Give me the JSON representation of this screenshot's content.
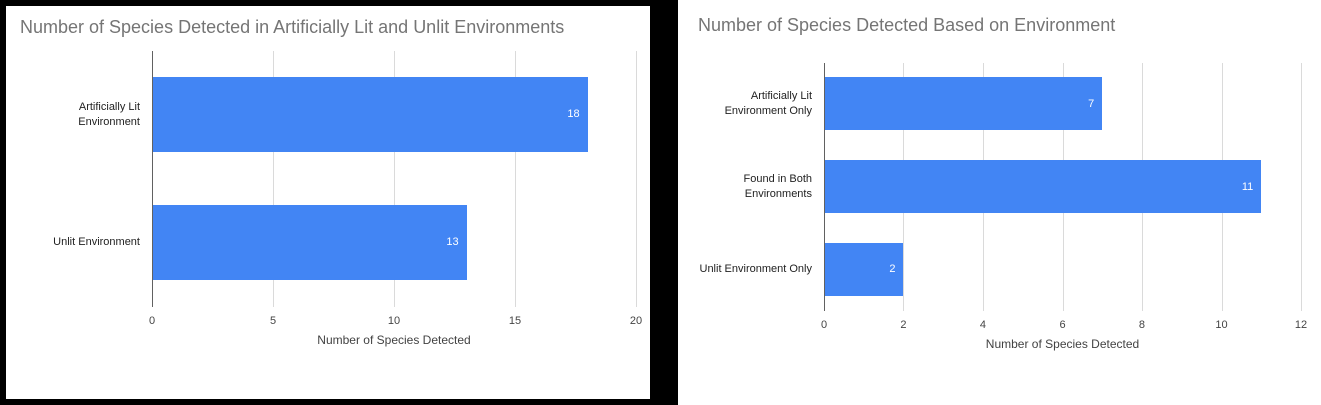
{
  "page": {
    "background": "#ffffff",
    "left_frame_color": "#000000"
  },
  "chart_data": [
    {
      "type": "bar",
      "orientation": "horizontal",
      "title": "Number of Species Detected in Artificially Lit and Unlit Environments",
      "categories": [
        "Artificially Lit Environment",
        "Unlit Environment"
      ],
      "values": [
        18,
        13
      ],
      "xlabel": "Number of Species Detected",
      "xlim": [
        0,
        20
      ],
      "xticks": [
        0,
        5,
        10,
        15,
        20
      ],
      "bar_color": "#4285f4",
      "data_label_color": "#ffffff",
      "grid": true,
      "legend": "none"
    },
    {
      "type": "bar",
      "orientation": "horizontal",
      "title": "Number of Species Detected Based on Environment",
      "categories": [
        "Artificially Lit Environment Only",
        "Found in Both Environments",
        "Unlit Environment Only"
      ],
      "values": [
        7,
        11,
        2
      ],
      "xlabel": "Number of Species Detected",
      "xlim": [
        0,
        12
      ],
      "xticks": [
        0,
        2,
        4,
        6,
        8,
        10,
        12
      ],
      "bar_color": "#4285f4",
      "data_label_color": "#ffffff",
      "grid": true,
      "legend": "none"
    }
  ]
}
